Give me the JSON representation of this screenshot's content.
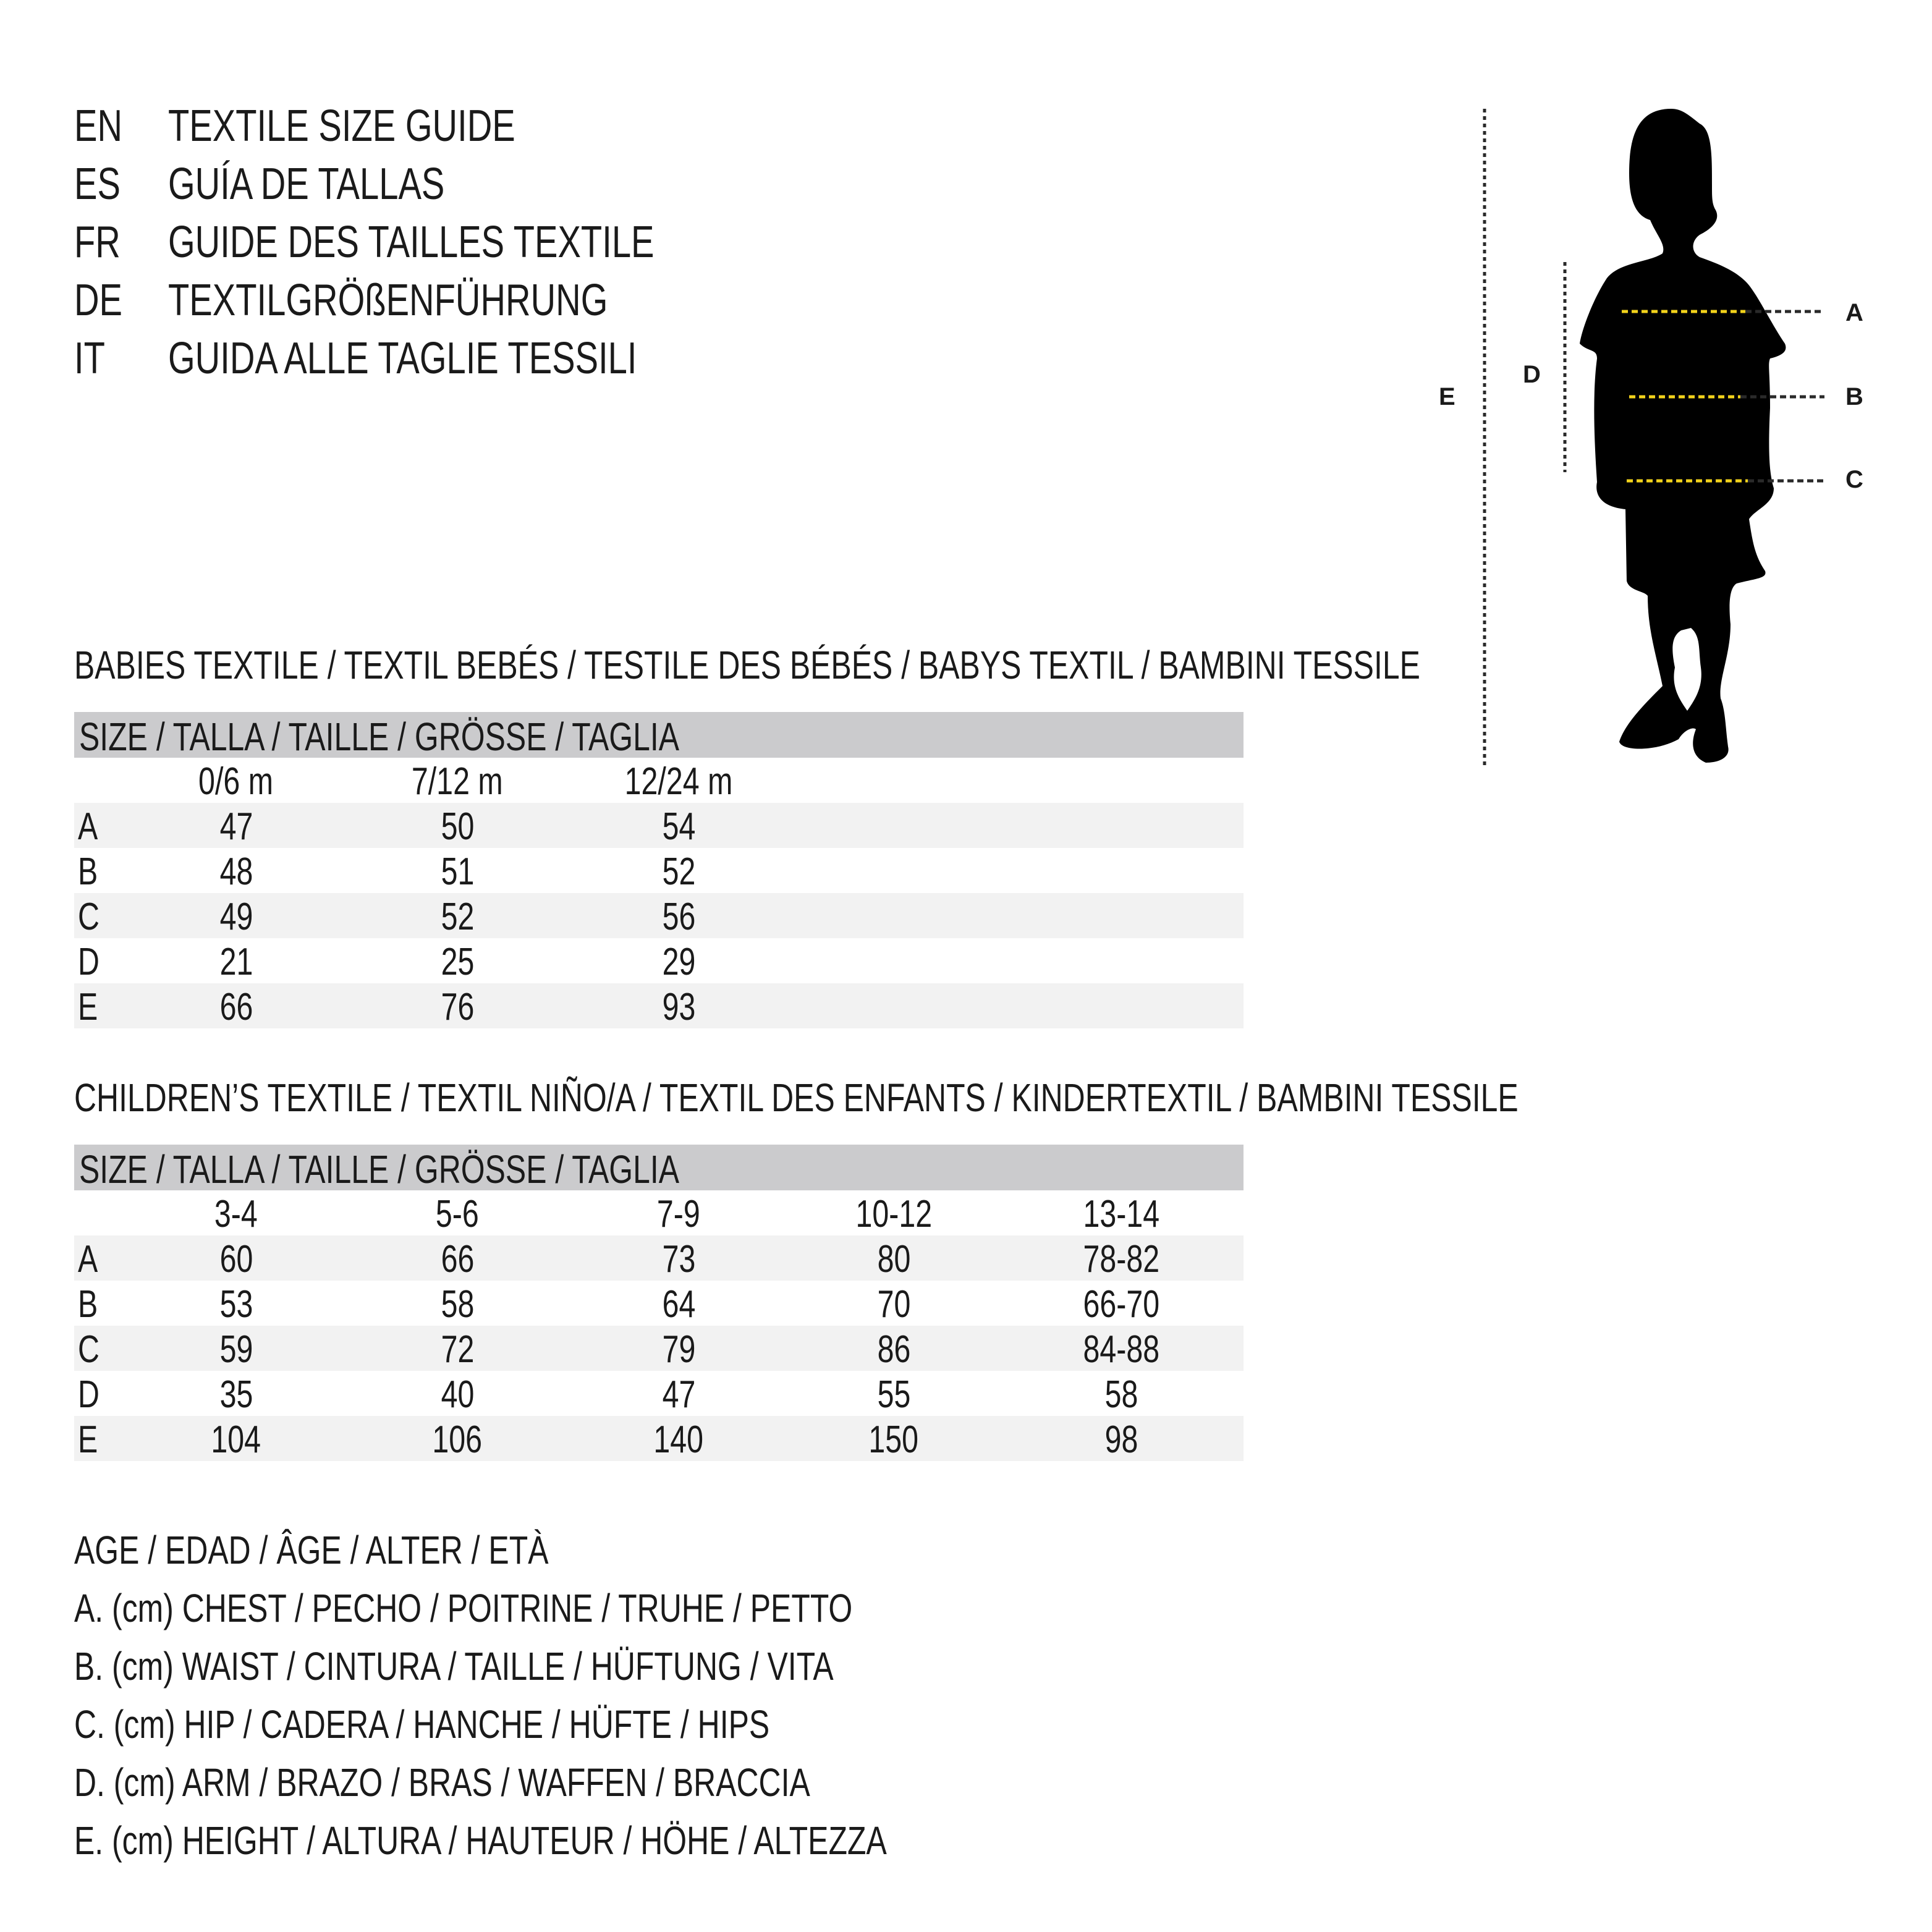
{
  "titles": [
    {
      "code": "EN",
      "text": "TEXTILE SIZE GUIDE"
    },
    {
      "code": "ES",
      "text": "GUÍA DE TALLAS"
    },
    {
      "code": "FR",
      "text": "GUIDE DES TAILLES TEXTILE"
    },
    {
      "code": "DE",
      "text": "TEXTILGRÖßENFÜHRUNG"
    },
    {
      "code": "IT",
      "text": "GUIDA ALLE TAGLIE TESSILI"
    }
  ],
  "figure": {
    "labels": {
      "A": "A",
      "B": "B",
      "C": "C",
      "D": "D",
      "E": "E"
    },
    "colors": {
      "silhouette": "#000000",
      "measure_line": "#f2d21b",
      "guide_line": "#2a2a2a"
    }
  },
  "babies": {
    "title": "BABIES TEXTILE / TEXTIL BEBÉS / TESTILE DES BÉBÉS / BABYS TEXTIL / BAMBINI TESSILE",
    "header": "SIZE / TALLA / TAILLE / GRÖSSE / TAGLIA",
    "columns": [
      "0/6 m",
      "7/12 m",
      "12/24 m"
    ],
    "rows": [
      {
        "label": "A",
        "values": [
          "47",
          "50",
          "54"
        ]
      },
      {
        "label": "B",
        "values": [
          "48",
          "51",
          "52"
        ]
      },
      {
        "label": "C",
        "values": [
          "49",
          "52",
          "56"
        ]
      },
      {
        "label": "D",
        "values": [
          "21",
          "25",
          "29"
        ]
      },
      {
        "label": "E",
        "values": [
          "66",
          "76",
          "93"
        ]
      }
    ]
  },
  "children": {
    "title": "CHILDREN’S TEXTILE / TEXTIL NIÑO/A / TEXTIL DES ENFANTS / KINDERTEXTIL / BAMBINI TESSILE",
    "header": "SIZE / TALLA / TAILLE / GRÖSSE / TAGLIA",
    "columns": [
      "3-4",
      "5-6",
      "7-9",
      "10-12",
      "13-14"
    ],
    "rows": [
      {
        "label": "A",
        "values": [
          "60",
          "66",
          "73",
          "80",
          "78-82"
        ]
      },
      {
        "label": "B",
        "values": [
          "53",
          "58",
          "64",
          "70",
          "66-70"
        ]
      },
      {
        "label": "C",
        "values": [
          "59",
          "72",
          "79",
          "86",
          "84-88"
        ]
      },
      {
        "label": "D",
        "values": [
          "35",
          "40",
          "47",
          "55",
          "58"
        ]
      },
      {
        "label": "E",
        "values": [
          "104",
          "106",
          "140",
          "150",
          "98"
        ]
      }
    ]
  },
  "legend": [
    "AGE / EDAD / ÂGE / ALTER / ETÀ",
    "A. (cm) CHEST / PECHO / POITRINE / TRUHE / PETTO",
    "B. (cm) WAIST / CINTURA / TAILLE / HÜFTUNG / VITA",
    "C. (cm) HIP / CADERA / HANCHE / HÜFTE / HIPS",
    "D. (cm) ARM / BRAZO / BRAS / WAFFEN / BRACCIA",
    "E. (cm) HEIGHT / ALTURA / HAUTEUR / HÖHE / ALTEZZA"
  ]
}
